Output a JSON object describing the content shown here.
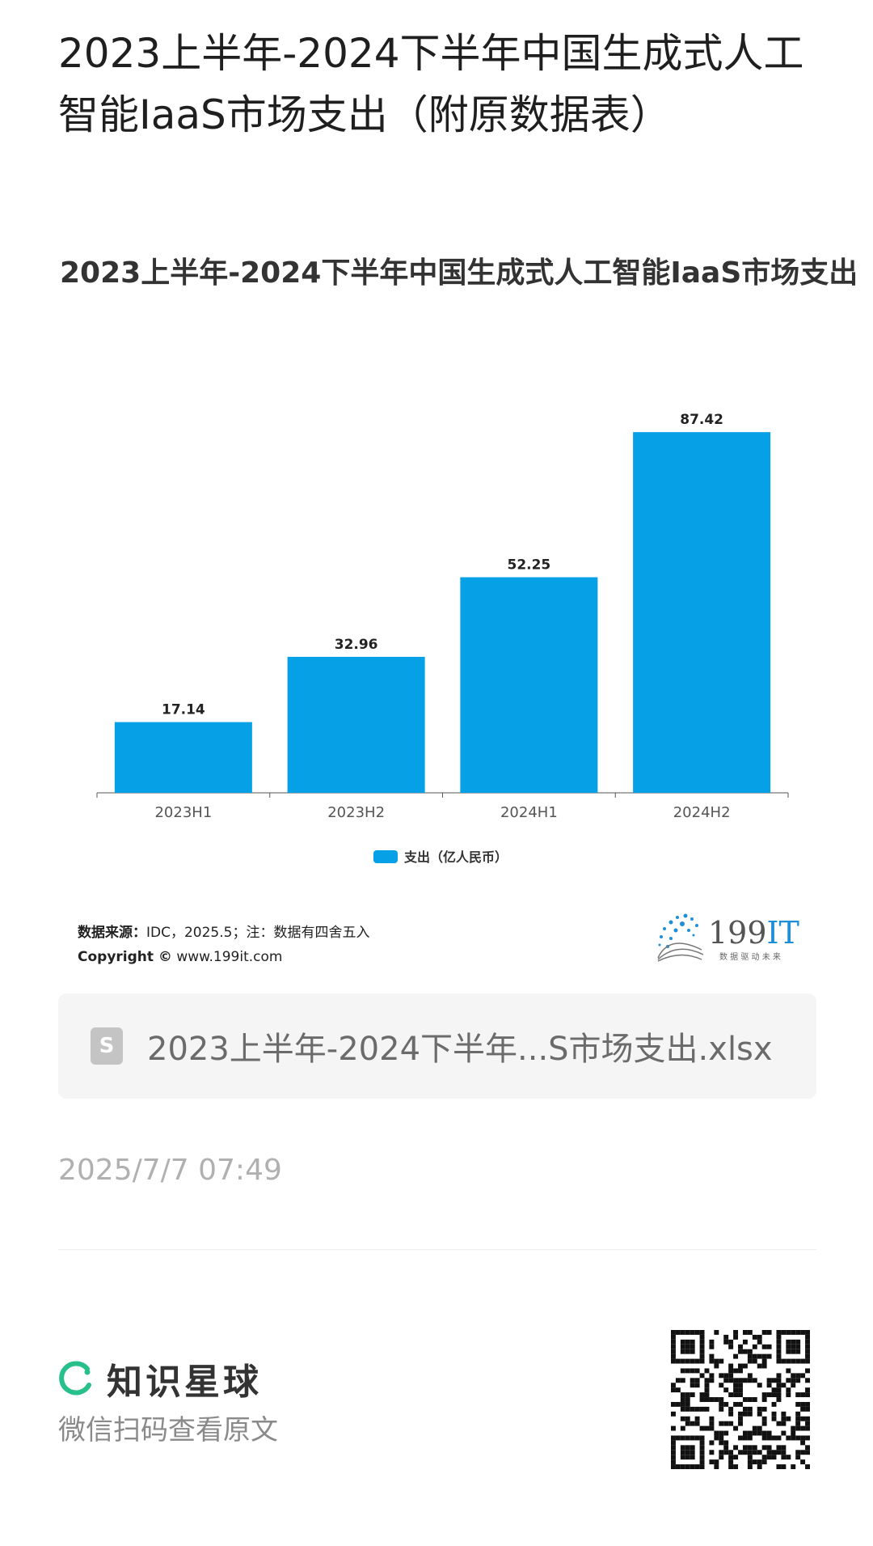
{
  "page": {
    "title": "2023上半年-2024下半年中国生成式人工智能IaaS市场支出（附原数据表）"
  },
  "chart_data": {
    "type": "bar",
    "title": "2023上半年-2024下半年中国生成式人工智能IaaS市场支出",
    "categories": [
      "2023H1",
      "2023H2",
      "2024H1",
      "2024H2"
    ],
    "series": [
      {
        "name": "支出（亿人民币）",
        "values": [
          17.14,
          32.96,
          52.25,
          87.42
        ],
        "color": "#05a0e6"
      }
    ],
    "value_labels": [
      "17.14",
      "32.96",
      "52.25",
      "87.42"
    ],
    "ylim": [
      0,
      100
    ],
    "grid": false,
    "legend_position": "bottom-center"
  },
  "source": {
    "label": "数据来源：",
    "text": "IDC，2025.5；注：数据有四舍五入",
    "copyright_label": "Copyright ©",
    "copyright_text": " www.199it.com"
  },
  "logo": {
    "text": "199IT",
    "tagline": "数 据 驱 动 未 来",
    "accent_color": "#1e8fd6"
  },
  "attachment": {
    "icon": "spreadsheet-file-icon",
    "icon_letter": "S",
    "filename": "2023上半年-2024下半年...S市场支出.xlsx"
  },
  "meta": {
    "timestamp": "2025/7/7 07:49"
  },
  "footer": {
    "brand_name": "知识星球",
    "brand_icon": "zsxq-ring-icon",
    "brand_color": "#27c08a",
    "subtitle": "微信扫码查看原文",
    "qr_icon": "qr-code-icon"
  }
}
